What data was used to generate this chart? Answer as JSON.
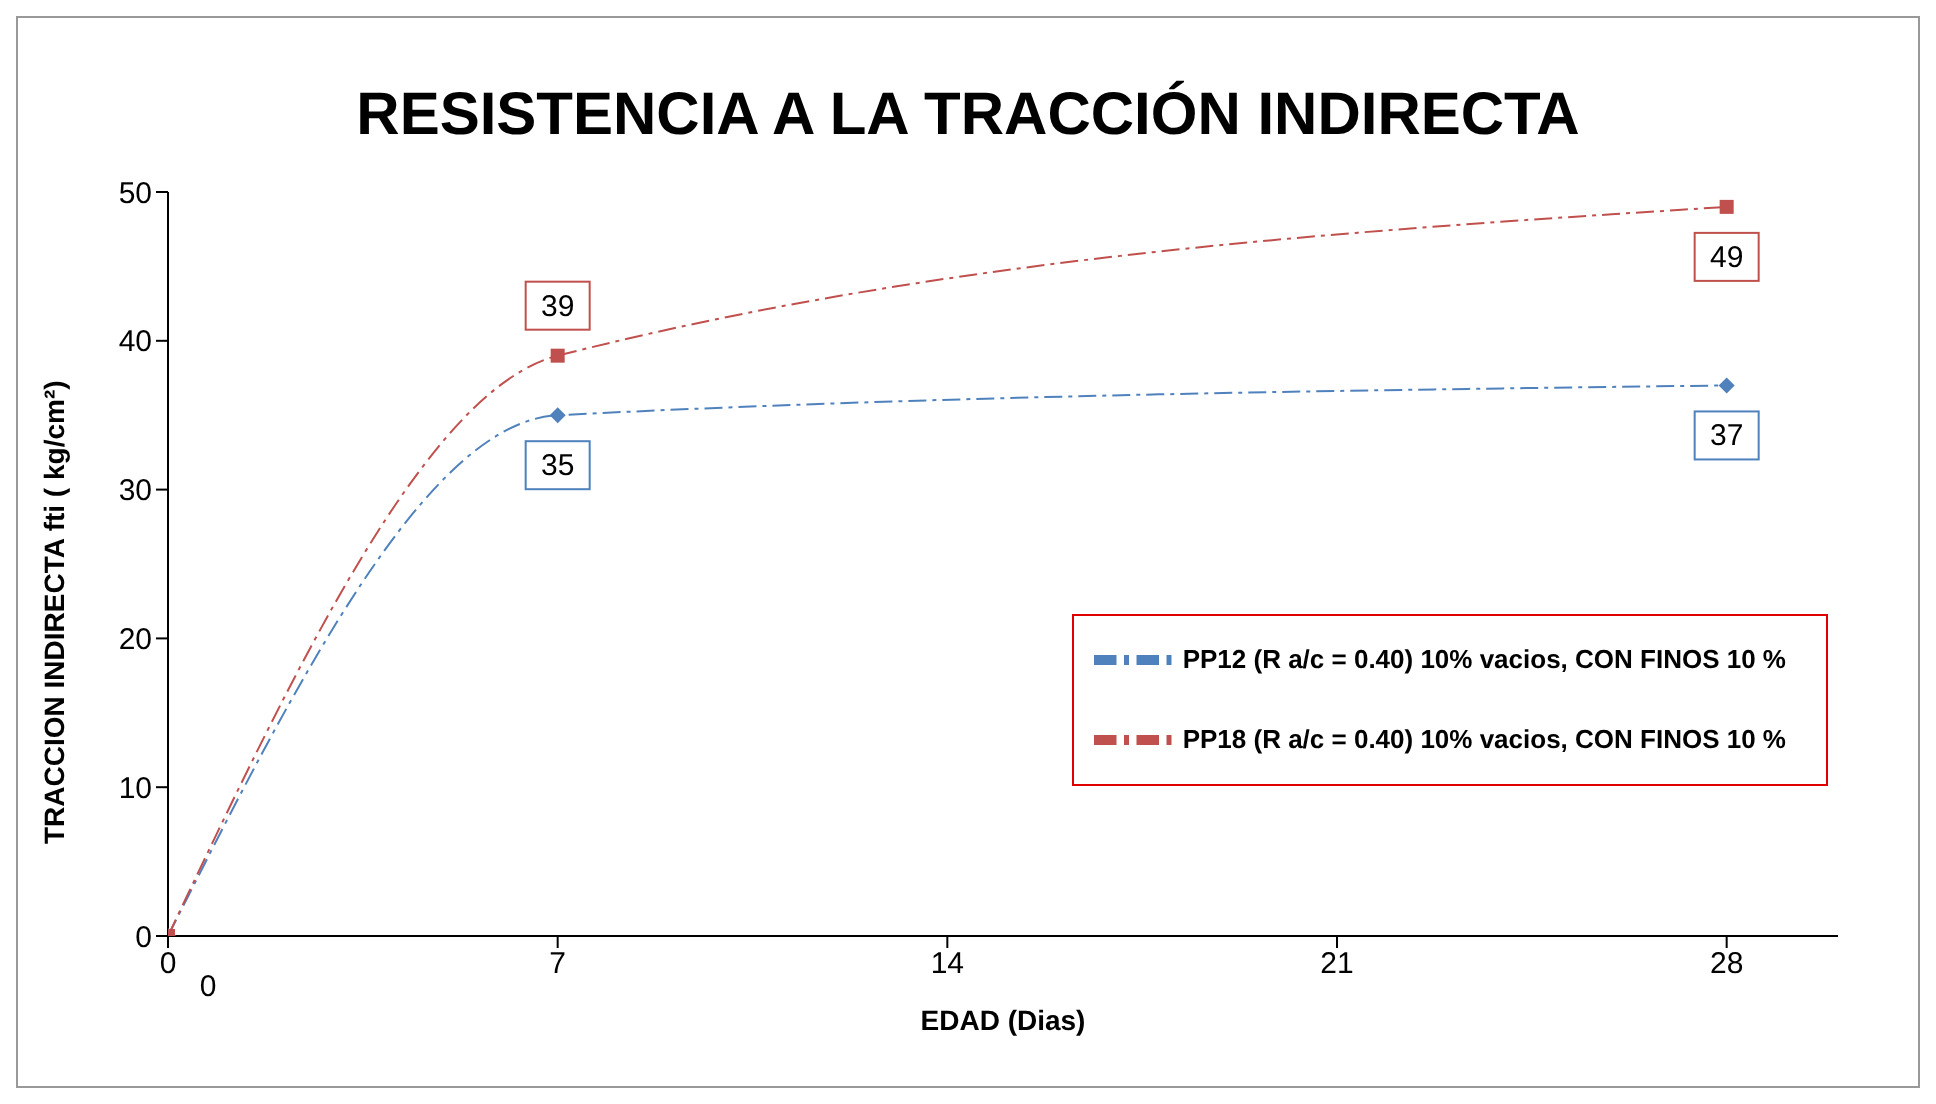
{
  "chart_data": {
    "type": "line",
    "title": "RESISTENCIA A LA TRACCIÓN INDIRECTA",
    "xlabel": "EDAD (Dias)",
    "ylabel": "TRACCION INDIRECTA fti ( kg/cm²)",
    "x": [
      0,
      7,
      28
    ],
    "series": [
      {
        "name": "PP12 (R a/c = 0.40) 10% vacios, CON FINOS 10 %",
        "color": "#4f81bd",
        "marker": "diamond",
        "values": [
          0,
          35,
          37
        ],
        "value_labels": [
          "0",
          "35",
          "37"
        ]
      },
      {
        "name": "PP18 (R a/c = 0.40) 10% vacios, CON FINOS 10 %",
        "color": "#c0504d",
        "marker": "square",
        "values": [
          0,
          39,
          49
        ],
        "value_labels": [
          null,
          "39",
          "49"
        ]
      }
    ],
    "line_style": "dashed",
    "xlim": [
      0,
      30
    ],
    "xticks": [
      0,
      7,
      14,
      21,
      28
    ],
    "ylim": [
      0,
      50
    ],
    "yticks": [
      0,
      10,
      20,
      30,
      40,
      50
    ],
    "grid": false,
    "legend": "bottom right"
  }
}
